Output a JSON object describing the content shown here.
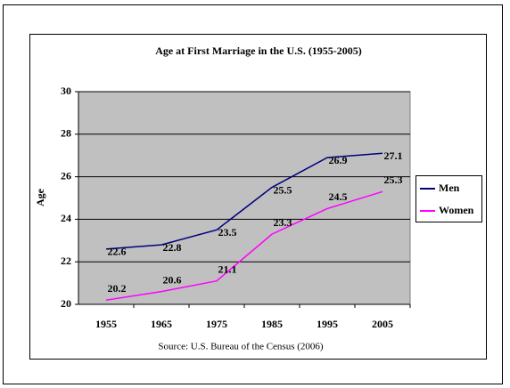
{
  "chart_data": {
    "type": "line",
    "title": "Age at First Marriage in the U.S. (1955-2005)",
    "ylabel": "Age",
    "source": "Source: U.S. Bureau of the Census (2006)",
    "categories": [
      "1955",
      "1965",
      "1975",
      "1985",
      "1995",
      "2005"
    ],
    "series": [
      {
        "name": "Men",
        "color": "#000080",
        "values": [
          22.6,
          22.8,
          23.5,
          25.5,
          26.9,
          27.1
        ]
      },
      {
        "name": "Women",
        "color": "#ff00ff",
        "values": [
          20.2,
          20.6,
          21.1,
          23.3,
          24.5,
          25.3
        ]
      }
    ],
    "ylim": [
      20,
      30
    ],
    "yticks": [
      20,
      22,
      24,
      26,
      28,
      30
    ],
    "grid": true,
    "legend": "right"
  }
}
